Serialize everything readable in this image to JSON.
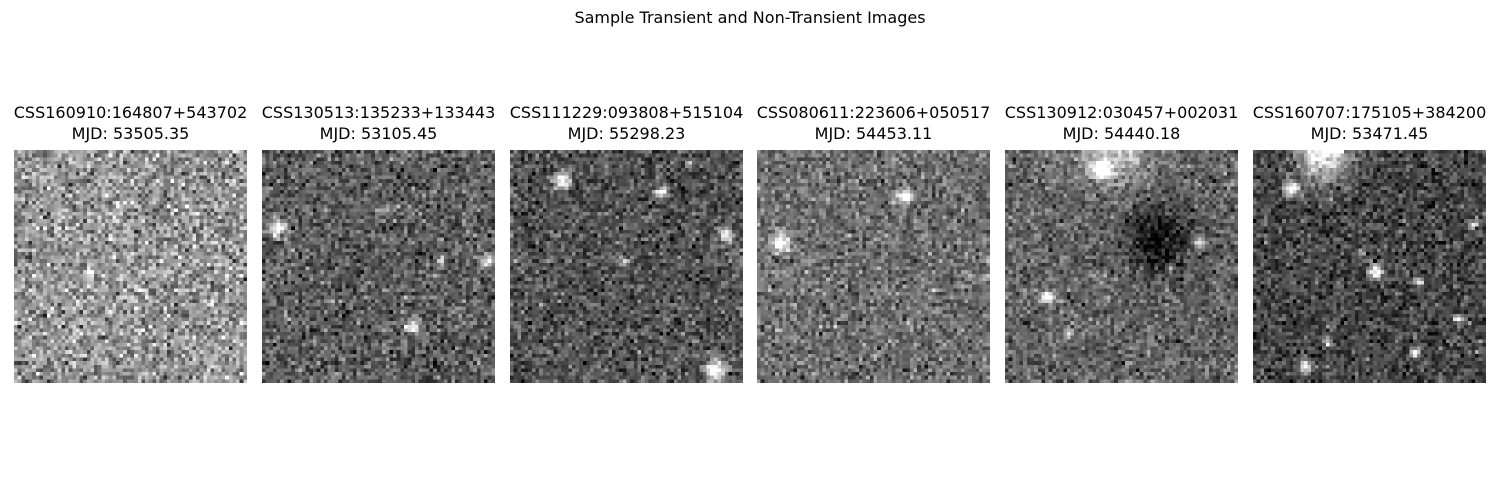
{
  "figure": {
    "title": "Sample Transient and Non-Transient Images"
  },
  "panels": [
    {
      "id": "CSS160910:164807+543702",
      "mjd_label": "MJD: 53505.35"
    },
    {
      "id": "CSS130513:135233+133443",
      "mjd_label": "MJD: 53105.45"
    },
    {
      "id": "CSS111229:093808+515104",
      "mjd_label": "MJD: 55298.23"
    },
    {
      "id": "CSS080611:223606+050517",
      "mjd_label": "MJD: 54453.11"
    },
    {
      "id": "CSS130912:030457+002031",
      "mjd_label": "MJD: 54440.18"
    },
    {
      "id": "CSS160707:175105+384200",
      "mjd_label": "MJD: 53471.45"
    }
  ],
  "colormap": "gray"
}
